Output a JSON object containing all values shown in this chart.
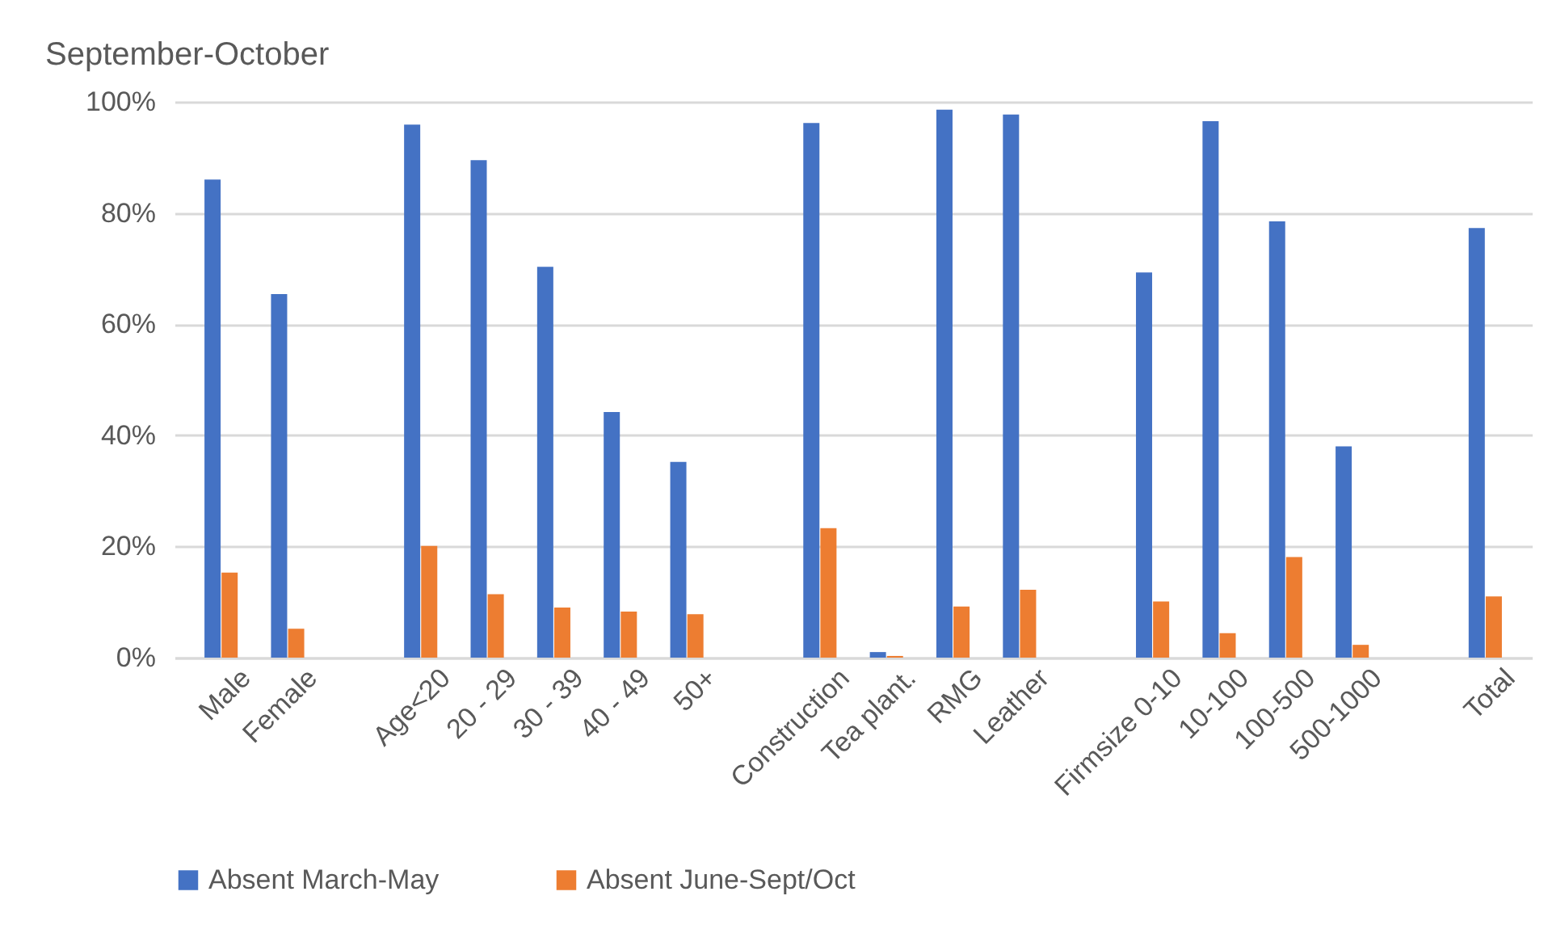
{
  "chart_data": {
    "type": "bar",
    "title": "September-October",
    "categories": [
      "Male",
      "Female",
      null,
      "Age<20",
      "20 - 29",
      "30 - 39",
      "40 - 49",
      "50+",
      null,
      "Construction",
      "Tea plant.",
      "RMG",
      "Leather",
      null,
      "Firmsize 0-10",
      "10-100",
      "100-500",
      "500-1000",
      null,
      "Total"
    ],
    "series": [
      {
        "name": "Absent March-May",
        "color": "#4472c4",
        "values": [
          86.0,
          65.4,
          null,
          95.9,
          89.5,
          70.3,
          44.2,
          35.2,
          null,
          96.2,
          1.0,
          98.6,
          97.7,
          null,
          69.3,
          96.5,
          78.5,
          38.0,
          null,
          77.3
        ]
      },
      {
        "name": "Absent June-Sept/Oct",
        "color": "#ed7d31",
        "values": [
          15.3,
          5.2,
          null,
          20.1,
          11.4,
          9.0,
          8.3,
          7.8,
          null,
          23.3,
          0.3,
          9.2,
          12.2,
          null,
          10.1,
          4.4,
          18.1,
          2.3,
          null,
          11.0
        ]
      }
    ],
    "ylim": [
      0,
      100
    ],
    "yticks": [
      {
        "value": 0,
        "label": "0%"
      },
      {
        "value": 20,
        "label": "20%"
      },
      {
        "value": 40,
        "label": "40%"
      },
      {
        "value": 60,
        "label": "60%"
      },
      {
        "value": 80,
        "label": "80%"
      },
      {
        "value": 100,
        "label": "100%"
      }
    ],
    "grid": "y",
    "legend": "bottom"
  }
}
